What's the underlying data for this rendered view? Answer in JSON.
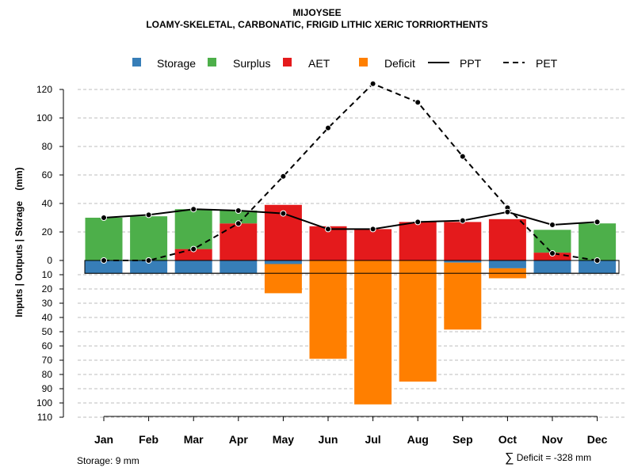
{
  "title": "MIJOYSEE",
  "subtitle": "LOAMY-SKELETAL, CARBONATIC, FRIGID LITHIC XERIC TORRIORTHENTS",
  "footnotes": {
    "storage": "Storage: 9 mm",
    "sigma": "∑",
    "deficit": "Deficit = -328 mm"
  },
  "colors": {
    "storage": "#377EB8",
    "surplus": "#4DAF4A",
    "aet": "#E41A1C",
    "deficit": "#FF7F00",
    "grid": "#BEBEBE",
    "line": "#000000"
  },
  "chart_data": {
    "type": "bar",
    "title": "MIJOYSEE",
    "subtitle": "LOAMY-SKELETAL, CARBONATIC, FRIGID LITHIC XERIC TORRIORTHENTS",
    "ylabel": "Inputs | Outputs | Storage    (mm)",
    "xlabel": "",
    "categories": [
      "Jan",
      "Feb",
      "Mar",
      "Apr",
      "May",
      "Jun",
      "Jul",
      "Aug",
      "Sep",
      "Oct",
      "Nov",
      "Dec"
    ],
    "ylim_upper": [
      0,
      130
    ],
    "ylim_lower": [
      0,
      110
    ],
    "yticks_upper": [
      0,
      20,
      40,
      60,
      80,
      100,
      120
    ],
    "yticks_lower": [
      10,
      20,
      30,
      40,
      50,
      60,
      70,
      80,
      90,
      100,
      110
    ],
    "storage_capacity": 9,
    "legend": [
      "Storage",
      "Surplus",
      "AET",
      "Deficit",
      "PPT",
      "PET"
    ],
    "series": [
      {
        "name": "Storage",
        "kind": "bar-below",
        "values": [
          9,
          9,
          9,
          9,
          2.5,
          0,
          0,
          0,
          1.5,
          5.5,
          9,
          9
        ]
      },
      {
        "name": "Surplus",
        "kind": "bar-above",
        "values": [
          30,
          31,
          28,
          9,
          0,
          0,
          0,
          0,
          0,
          0,
          16,
          26
        ]
      },
      {
        "name": "AET",
        "kind": "bar-above",
        "values": [
          0,
          0,
          8,
          26,
          39,
          24,
          22,
          27,
          27,
          29,
          5.5,
          0
        ]
      },
      {
        "name": "Deficit",
        "kind": "bar-below",
        "values": [
          0,
          0,
          0,
          0,
          20.5,
          69,
          101,
          85,
          47,
          7,
          0,
          0
        ]
      },
      {
        "name": "PPT",
        "kind": "line",
        "style": "solid",
        "values": [
          30,
          32,
          36,
          35,
          33,
          22,
          22,
          27,
          28,
          34,
          25,
          27
        ]
      },
      {
        "name": "PET",
        "kind": "line",
        "style": "dashed",
        "values": [
          0,
          0,
          8,
          26,
          59,
          93,
          124,
          111,
          73,
          37,
          5,
          0
        ]
      }
    ]
  }
}
